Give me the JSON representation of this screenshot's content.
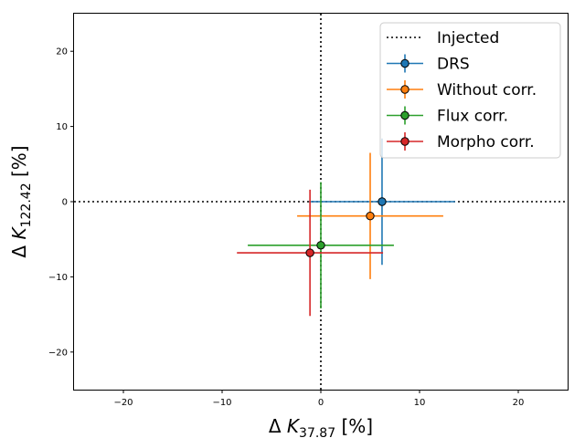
{
  "chart_data": {
    "type": "scatter",
    "title": "",
    "xlabel": {
      "prefix": "Δ ",
      "var": "K",
      "sub": "37.87",
      "suffix": " [%]"
    },
    "ylabel": {
      "prefix": "Δ ",
      "var": "K",
      "sub": "122.42",
      "suffix": " [%]"
    },
    "xlim": [
      -25,
      25
    ],
    "ylim": [
      -25,
      25
    ],
    "xticks": [
      -20,
      -10,
      0,
      10,
      20
    ],
    "yticks": [
      -20,
      -10,
      0,
      10,
      20
    ],
    "xtick_labels": [
      "−20",
      "−10",
      "0",
      "10",
      "20"
    ],
    "ytick_labels": [
      "−20",
      "−10",
      "0",
      "10",
      "20"
    ],
    "grid": false,
    "legend_position": "upper-right",
    "reference_lines": [
      {
        "name": "Injected",
        "x": 0,
        "y": 0,
        "style": "dotted",
        "color": "#000000"
      }
    ],
    "series": [
      {
        "name": "DRS",
        "color": "#1f77b4",
        "x": 6.2,
        "y": 0.0,
        "xerr": [
          7.4,
          7.4
        ],
        "yerr": [
          8.4,
          8.4
        ]
      },
      {
        "name": "Without corr.",
        "color": "#ff7f0e",
        "x": 5.0,
        "y": -1.9,
        "xerr": [
          7.4,
          7.4
        ],
        "yerr": [
          8.4,
          8.4
        ]
      },
      {
        "name": "Flux corr.",
        "color": "#2ca02c",
        "x": 0.0,
        "y": -5.8,
        "xerr": [
          7.4,
          7.4
        ],
        "yerr": [
          8.4,
          8.4
        ]
      },
      {
        "name": "Morpho corr.",
        "color": "#d62728",
        "x": -1.1,
        "y": -6.8,
        "xerr": [
          7.4,
          7.4
        ],
        "yerr": [
          8.4,
          8.4
        ]
      }
    ]
  }
}
